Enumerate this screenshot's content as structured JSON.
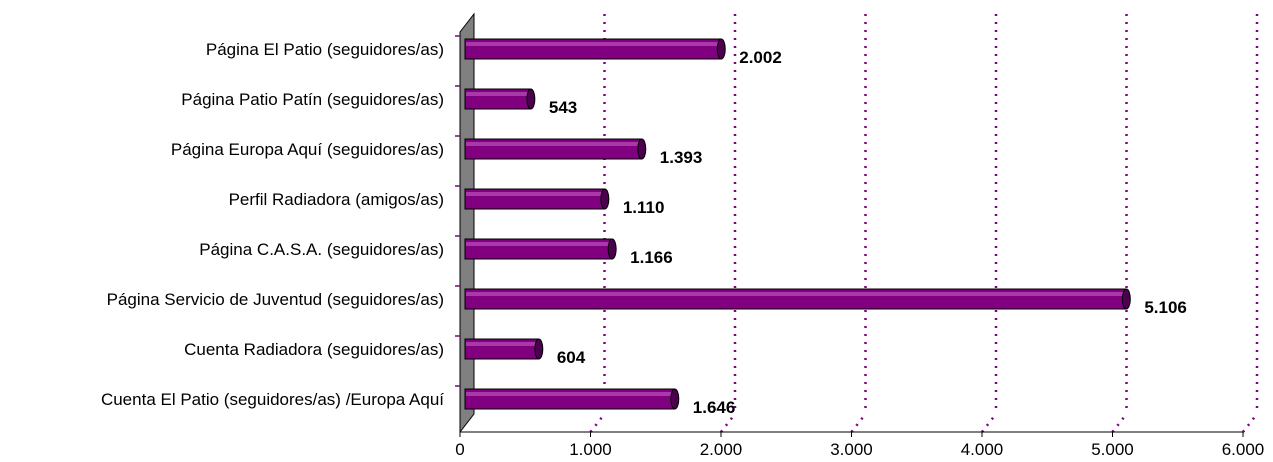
{
  "chart_data": {
    "type": "bar",
    "orientation": "horizontal",
    "categories": [
      "Página El Patio (seguidores/as)",
      "Página Patio Patín  (seguidores/as)",
      "Página Europa Aquí (seguidores/as)",
      "Perfil Radiadora (amigos/as)",
      "Página C.A.S.A. (seguidores/as)",
      "Página Servicio de Juventud (seguidores/as)",
      "Cuenta Radiadora (seguidores/as)",
      "Cuenta El Patio (seguidores/as) /Europa Aquí"
    ],
    "values": [
      2002,
      543,
      1393,
      1110,
      1166,
      5106,
      604,
      1646
    ],
    "data_labels": [
      "2.002",
      "543",
      "1.393",
      "1.110",
      "1.166",
      "5.106",
      "604",
      "1.646"
    ],
    "xlim": [
      0,
      6000
    ],
    "x_ticks": [
      0,
      1000,
      2000,
      3000,
      4000,
      5000,
      6000
    ],
    "x_tick_labels": [
      "0",
      "1.000",
      "2.000",
      "3.000",
      "4.000",
      "5.000",
      "6.000"
    ],
    "title": "",
    "xlabel": "",
    "ylabel": "",
    "grid": "vertical dotted",
    "legend": "none",
    "colors": {
      "bar": "#800080",
      "bar_highlight": "#b347b3",
      "bar_shadow": "#4d004d",
      "gridline": "#800080",
      "wall": "#808080",
      "axis": "#000000"
    }
  }
}
